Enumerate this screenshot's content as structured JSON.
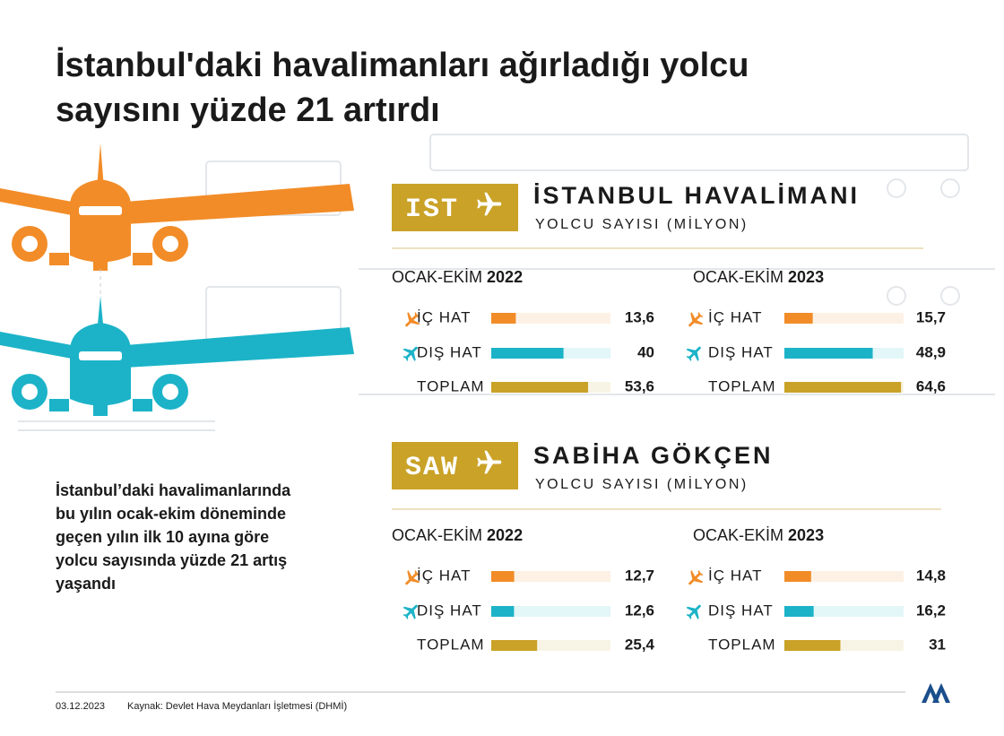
{
  "title_lines": [
    "İstanbul'daki havalimanları ağırladığı yolcu",
    "sayısını yüzde 21 artırdı"
  ],
  "airports": [
    {
      "code": "IST",
      "name": "İSTANBUL HAVALİMANI",
      "subtitle": "YOLCU SAYISI (MİLYON)"
    },
    {
      "code": "SAW",
      "name": "SABİHA GÖKÇEN",
      "subtitle": "YOLCU SAYISI (MİLYON)"
    }
  ],
  "note_lines": [
    "İstanbul’daki havalimanlarında",
    "bu yılın ocak-ekim döneminde",
    "geçen yılın ilk 10 ayına göre",
    "yolcu sayısında yüzde 21 artış",
    "yaşandı"
  ],
  "date": "03.12.2023",
  "source": "Kaynak: Devlet Hava Meydanları İşletmesi (DHMİ)",
  "chart_data": [
    {
      "type": "hbar",
      "period": "OCAK-EKİM",
      "year": "2022",
      "categories": [
        "İÇ HAT",
        "DIŞ HAT",
        "TOPLAM"
      ],
      "values": [
        13.6,
        40,
        53.6
      ],
      "value_labels": [
        "13,6",
        "40",
        "53,6"
      ],
      "colors": [
        "#f28c28",
        "#1cb3c8",
        "#c9a227"
      ],
      "xlim": [
        0,
        66
      ]
    },
    {
      "type": "hbar",
      "period": "OCAK-EKİM",
      "year": "2023",
      "categories": [
        "İÇ HAT",
        "DIŞ HAT",
        "TOPLAM"
      ],
      "values": [
        15.7,
        48.9,
        64.6
      ],
      "value_labels": [
        "15,7",
        "48,9",
        "64,6"
      ],
      "colors": [
        "#f28c28",
        "#1cb3c8",
        "#c9a227"
      ],
      "xlim": [
        0,
        66
      ]
    },
    {
      "type": "hbar",
      "period": "OCAK-EKİM",
      "year": "2022",
      "categories": [
        "İÇ HAT",
        "DIŞ HAT",
        "TOPLAM"
      ],
      "values": [
        12.7,
        12.6,
        25.4
      ],
      "value_labels": [
        "12,7",
        "12,6",
        "25,4"
      ],
      "colors": [
        "#f28c28",
        "#1cb3c8",
        "#c9a227"
      ],
      "xlim": [
        0,
        66
      ]
    },
    {
      "type": "hbar",
      "period": "OCAK-EKİM",
      "year": "2023",
      "categories": [
        "İÇ HAT",
        "DIŞ HAT",
        "TOPLAM"
      ],
      "values": [
        14.8,
        16.2,
        31
      ],
      "value_labels": [
        "14,8",
        "16,2",
        "31"
      ],
      "colors": [
        "#f28c28",
        "#1cb3c8",
        "#c9a227"
      ],
      "xlim": [
        0,
        66
      ]
    }
  ]
}
